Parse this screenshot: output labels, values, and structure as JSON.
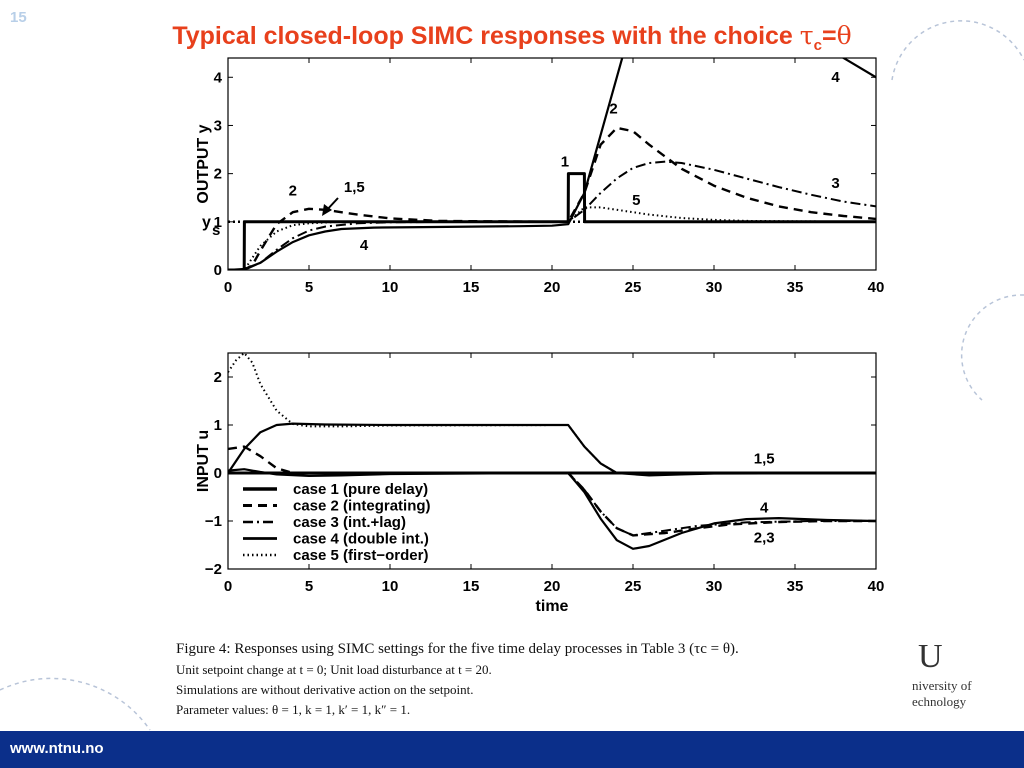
{
  "slide": {
    "number": "15",
    "title_text": "Typical closed-loop SIMC responses with the choice ",
    "title_tau": "τ",
    "title_sub": "c",
    "title_eq": "=",
    "title_theta": "θ",
    "footer_url": "www.ntnu.no",
    "logo_text_1": "niversity of",
    "logo_text_2": "echnology",
    "logo_mark": "U",
    "colors": {
      "title": "#e8401c",
      "footer": "#0b2f8a",
      "slide_number": "#b8cfe8"
    }
  },
  "caption": {
    "line1": "Figure 4: Responses using SIMC settings for the five time delay processes in Table 3 (τc = θ).",
    "line2": "Unit setpoint change at t = 0; Unit load disturbance at t = 20.",
    "line3": "Simulations are without derivative action on the setpoint.",
    "line4": "Parameter values: θ = 1, k = 1, k′ = 1, k″ = 1."
  },
  "chart_data": [
    {
      "type": "line",
      "ylabel": "OUTPUT y",
      "setpoint_label_main": "y",
      "setpoint_label_sub": "s",
      "xlim": [
        0,
        40
      ],
      "ylim": [
        0,
        4.4
      ],
      "x_ticks": [
        0,
        5,
        10,
        15,
        20,
        25,
        30,
        35,
        40
      ],
      "y_ticks": [
        0,
        1,
        2,
        3,
        4
      ],
      "series": [
        {
          "name": "1",
          "style": "solid-thick",
          "points": [
            [
              0,
              0
            ],
            [
              1,
              0
            ],
            [
              1.01,
              1
            ],
            [
              21,
              1
            ],
            [
              21.01,
              2
            ],
            [
              22,
              2
            ],
            [
              22.01,
              1
            ],
            [
              40,
              1
            ]
          ]
        },
        {
          "name": "2",
          "style": "dashed",
          "points": [
            [
              0,
              0
            ],
            [
              1,
              0
            ],
            [
              1.5,
              0.1
            ],
            [
              2,
              0.4
            ],
            [
              3,
              0.95
            ],
            [
              4,
              1.2
            ],
            [
              5,
              1.27
            ],
            [
              6,
              1.25
            ],
            [
              8,
              1.15
            ],
            [
              10,
              1.07
            ],
            [
              13,
              1.02
            ],
            [
              16,
              1.01
            ],
            [
              20,
              1.0
            ],
            [
              21,
              1.0
            ],
            [
              22,
              1.6
            ],
            [
              23,
              2.6
            ],
            [
              24,
              2.95
            ],
            [
              25,
              2.88
            ],
            [
              26,
              2.6
            ],
            [
              28,
              2.1
            ],
            [
              30,
              1.75
            ],
            [
              32,
              1.5
            ],
            [
              34,
              1.32
            ],
            [
              36,
              1.2
            ],
            [
              38,
              1.12
            ],
            [
              40,
              1.06
            ]
          ]
        },
        {
          "name": "3",
          "style": "dashdot",
          "points": [
            [
              0,
              0
            ],
            [
              1,
              0
            ],
            [
              2,
              0.15
            ],
            [
              3,
              0.42
            ],
            [
              4,
              0.66
            ],
            [
              5,
              0.82
            ],
            [
              6,
              0.9
            ],
            [
              8,
              0.97
            ],
            [
              10,
              0.99
            ],
            [
              14,
              1.0
            ],
            [
              21,
              1.0
            ],
            [
              22,
              1.25
            ],
            [
              23,
              1.6
            ],
            [
              24,
              1.9
            ],
            [
              25,
              2.12
            ],
            [
              26,
              2.22
            ],
            [
              27,
              2.25
            ],
            [
              28,
              2.22
            ],
            [
              30,
              2.08
            ],
            [
              32,
              1.9
            ],
            [
              34,
              1.72
            ],
            [
              36,
              1.56
            ],
            [
              38,
              1.42
            ],
            [
              40,
              1.32
            ]
          ]
        },
        {
          "name": "4",
          "style": "solid",
          "points": [
            [
              0,
              0
            ],
            [
              1,
              0.02
            ],
            [
              2,
              0.15
            ],
            [
              3,
              0.38
            ],
            [
              4,
              0.58
            ],
            [
              5,
              0.72
            ],
            [
              6,
              0.8
            ],
            [
              7,
              0.85
            ],
            [
              9,
              0.88
            ],
            [
              12,
              0.89
            ],
            [
              15,
              0.9
            ],
            [
              18,
              0.91
            ],
            [
              20,
              0.92
            ],
            [
              21,
              0.95
            ],
            [
              22,
              1.6
            ],
            [
              23,
              2.8
            ],
            [
              24,
              4.0
            ],
            [
              24.5,
              4.6
            ]
          ]
        },
        {
          "name": "4b",
          "style": "solid",
          "points": [
            [
              37.5,
              4.5
            ],
            [
              38.5,
              4.3
            ],
            [
              40,
              4.0
            ]
          ]
        },
        {
          "name": "5",
          "style": "dotted",
          "points": [
            [
              0,
              0
            ],
            [
              1,
              0
            ],
            [
              2,
              0.5
            ],
            [
              3,
              0.8
            ],
            [
              4,
              0.93
            ],
            [
              5,
              0.97
            ],
            [
              7,
              1.0
            ],
            [
              21,
              1.0
            ],
            [
              22,
              1.3
            ],
            [
              23,
              1.3
            ],
            [
              24,
              1.25
            ],
            [
              26,
              1.15
            ],
            [
              28,
              1.08
            ],
            [
              30,
              1.04
            ],
            [
              32,
              1.02
            ],
            [
              35,
              1.01
            ],
            [
              40,
              1.0
            ]
          ]
        },
        {
          "name": "ys",
          "style": "dotted-thick",
          "points": [
            [
              0,
              1
            ],
            [
              40,
              1
            ]
          ]
        }
      ],
      "annotations": [
        {
          "text": "1",
          "x": 20.8,
          "y": 2.15
        },
        {
          "text": "2",
          "x": 23.8,
          "y": 3.25
        },
        {
          "text": "2",
          "x": 4.0,
          "y": 1.55
        },
        {
          "text": "1,5",
          "x": 7.8,
          "y": 1.62
        },
        {
          "text": "4",
          "x": 8.4,
          "y": 0.42
        },
        {
          "text": "4",
          "x": 37.5,
          "y": 3.9
        },
        {
          "text": "3",
          "x": 37.5,
          "y": 1.7
        },
        {
          "text": "5",
          "x": 25.2,
          "y": 1.35
        }
      ]
    },
    {
      "type": "line",
      "ylabel": "INPUT u",
      "xlabel": "time",
      "xlim": [
        0,
        40
      ],
      "ylim": [
        -2,
        2.5
      ],
      "x_ticks": [
        0,
        5,
        10,
        15,
        20,
        25,
        30,
        35,
        40
      ],
      "y_ticks": [
        -2,
        -1,
        0,
        1,
        2
      ],
      "series": [
        {
          "name": "case 1 (pure delay)",
          "style": "solid-thick",
          "points": [
            [
              0,
              0
            ],
            [
              21,
              0
            ],
            [
              40,
              0
            ]
          ]
        },
        {
          "name": "case 2 (integrating)",
          "style": "dashed",
          "points": [
            [
              0,
              0.5
            ],
            [
              1,
              0.55
            ],
            [
              2,
              0.35
            ],
            [
              3,
              0.1
            ],
            [
              4,
              0
            ],
            [
              21,
              0
            ],
            [
              22,
              -0.35
            ],
            [
              23,
              -0.8
            ],
            [
              24,
              -1.15
            ],
            [
              25,
              -1.3
            ],
            [
              27,
              -1.25
            ],
            [
              29,
              -1.15
            ],
            [
              31,
              -1.07
            ],
            [
              34,
              -1.02
            ],
            [
              37,
              -1.0
            ],
            [
              40,
              -1.0
            ]
          ]
        },
        {
          "name": "case 3 (int.+lag)",
          "style": "dashdot",
          "points": [
            [
              0,
              0
            ],
            [
              21,
              0
            ],
            [
              22,
              -0.35
            ],
            [
              23,
              -0.8
            ],
            [
              24,
              -1.15
            ],
            [
              25,
              -1.3
            ],
            [
              27,
              -1.2
            ],
            [
              29,
              -1.1
            ],
            [
              32,
              -1.03
            ],
            [
              36,
              -1.0
            ],
            [
              40,
              -1.0
            ]
          ]
        },
        {
          "name": "case 4 (double int.)",
          "style": "solid",
          "points": [
            [
              0,
              0
            ],
            [
              1,
              0.5
            ],
            [
              2,
              0.85
            ],
            [
              3,
              1.0
            ],
            [
              4,
              1.03
            ],
            [
              6,
              1.01
            ],
            [
              10,
              1.0
            ],
            [
              21,
              1.0
            ],
            [
              22,
              0.55
            ],
            [
              23,
              0.2
            ],
            [
              24,
              0
            ],
            [
              26,
              -0.05
            ],
            [
              28,
              -0.03
            ],
            [
              30,
              -0.01
            ],
            [
              40,
              0
            ]
          ]
        },
        {
          "name": "case 4 (double int.) u2",
          "style": "solid",
          "points": [
            [
              0,
              0.05
            ],
            [
              1,
              0.08
            ],
            [
              2,
              0.02
            ],
            [
              3,
              -0.03
            ],
            [
              5,
              -0.06
            ],
            [
              7,
              -0.05
            ],
            [
              10,
              -0.02
            ],
            [
              21,
              0
            ],
            [
              22,
              -0.4
            ],
            [
              23,
              -0.95
            ],
            [
              24,
              -1.4
            ],
            [
              25,
              -1.58
            ],
            [
              26,
              -1.52
            ],
            [
              28,
              -1.25
            ],
            [
              30,
              -1.05
            ],
            [
              32,
              -0.96
            ],
            [
              34,
              -0.94
            ],
            [
              37,
              -0.98
            ],
            [
              40,
              -1.0
            ]
          ]
        },
        {
          "name": "case 5 (first-order)",
          "style": "dotted",
          "points": [
            [
              0,
              2.1
            ],
            [
              0.5,
              2.35
            ],
            [
              1,
              2.5
            ],
            [
              1.5,
              2.3
            ],
            [
              2,
              1.85
            ],
            [
              3,
              1.3
            ],
            [
              4,
              1.02
            ],
            [
              5,
              0.97
            ],
            [
              7,
              0.97
            ],
            [
              10,
              0.99
            ],
            [
              21,
              1.0
            ],
            [
              22,
              0.55
            ],
            [
              23,
              0.2
            ],
            [
              24,
              0
            ],
            [
              40,
              0
            ]
          ]
        }
      ],
      "legend": {
        "position": "lower-left",
        "entries": [
          {
            "label": "case 1 (pure delay)",
            "style": "solid-thick"
          },
          {
            "label": "case 2 (integrating)",
            "style": "dashed"
          },
          {
            "label": "case 3 (int.+lag)",
            "style": "dashdot"
          },
          {
            "label": "case 4 (double int.)",
            "style": "solid"
          },
          {
            "label": "case 5 (first−order)",
            "style": "dotted"
          }
        ]
      },
      "annotations": [
        {
          "text": "1,5",
          "x": 33.1,
          "y": 0.2
        },
        {
          "text": "4",
          "x": 33.1,
          "y": -0.82
        },
        {
          "text": "2,3",
          "x": 33.1,
          "y": -1.45
        }
      ]
    }
  ]
}
